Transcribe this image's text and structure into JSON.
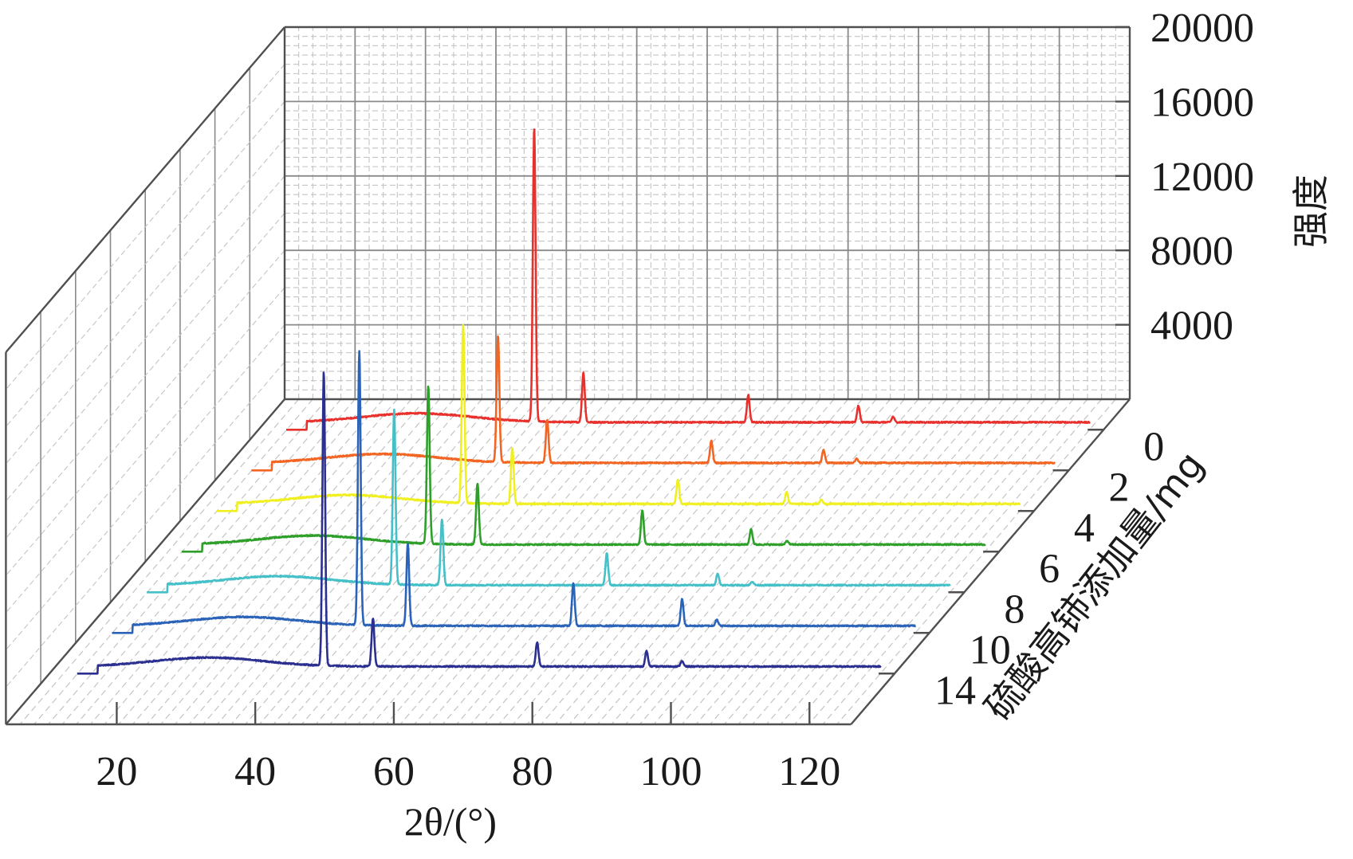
{
  "chart_data": {
    "type": "line",
    "title": "",
    "xlabel": "2θ/(°)",
    "ylabel": "强度",
    "zlabel": "硫酸高铈添加量/mg",
    "x_ticks": [
      "20",
      "40",
      "60",
      "80",
      "100",
      "120"
    ],
    "y_ticks": [
      "4000",
      "8000",
      "12000",
      "16000",
      "20000"
    ],
    "z_ticks": [
      "0",
      "2",
      "4",
      "6",
      "8",
      "10",
      "14"
    ],
    "xlim": [
      4,
      126
    ],
    "ylim": [
      0,
      20000
    ],
    "grid": true,
    "legend": "none",
    "series": [
      {
        "name": "0",
        "color": "#e8312c",
        "baseline": 400,
        "peaks": [
          [
            43.8,
            15800
          ],
          [
            50.9,
            2650
          ],
          [
            74.7,
            1450
          ],
          [
            90.6,
            880
          ],
          [
            95.6,
            300
          ]
        ]
      },
      {
        "name": "2",
        "color": "#f26522",
        "baseline": 400,
        "peaks": [
          [
            43.6,
            6800
          ],
          [
            50.7,
            2300
          ],
          [
            74.4,
            1180
          ],
          [
            90.6,
            700
          ],
          [
            95.4,
            220
          ]
        ]
      },
      {
        "name": "4",
        "color": "#f0f020",
        "baseline": 380,
        "peaks": [
          [
            43.6,
            9600
          ],
          [
            50.7,
            3000
          ],
          [
            74.6,
            1300
          ],
          [
            90.3,
            640
          ],
          [
            95.3,
            220
          ]
        ]
      },
      {
        "name": "6",
        "color": "#2ea02a",
        "baseline": 380,
        "peaks": [
          [
            43.6,
            8500
          ],
          [
            50.7,
            3300
          ],
          [
            74.5,
            1850
          ],
          [
            90.2,
            830
          ],
          [
            95.4,
            200
          ]
        ]
      },
      {
        "name": "8",
        "color": "#45c0c8",
        "baseline": 380,
        "peaks": [
          [
            43.7,
            9400
          ],
          [
            50.6,
            3550
          ],
          [
            74.4,
            1700
          ],
          [
            90.4,
            630
          ],
          [
            95.4,
            200
          ]
        ]
      },
      {
        "name": "10",
        "color": "#2a63b8",
        "baseline": 380,
        "peaks": [
          [
            43.7,
            14700
          ],
          [
            50.7,
            4400
          ],
          [
            74.6,
            2300
          ],
          [
            90.3,
            1450
          ],
          [
            95.3,
            350
          ]
        ]
      },
      {
        "name": "14",
        "color": "#2b2f8f",
        "baseline": 380,
        "peaks": [
          [
            43.6,
            15800
          ],
          [
            50.7,
            2600
          ],
          [
            74.4,
            1300
          ],
          [
            90.2,
            820
          ],
          [
            95.3,
            300
          ]
        ]
      }
    ]
  }
}
